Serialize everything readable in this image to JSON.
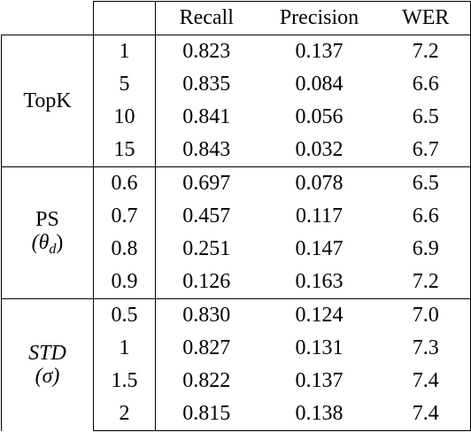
{
  "table": {
    "header": [
      "Recall",
      "Precision",
      "WER"
    ],
    "groups": [
      {
        "label": [
          [
            "TopK"
          ]
        ],
        "rows": [
          [
            "1",
            "0.823",
            "0.137",
            "7.2"
          ],
          [
            "5",
            "0.835",
            "0.084",
            "6.6"
          ],
          [
            "10",
            "0.841",
            "0.056",
            "6.5"
          ],
          [
            "15",
            "0.843",
            "0.032",
            "6.7"
          ]
        ]
      },
      {
        "label": [
          [
            "PS"
          ],
          [
            "(θ",
            "d",
            ")"
          ]
        ],
        "rows": [
          [
            "0.6",
            "0.697",
            "0.078",
            "6.5"
          ],
          [
            "0.7",
            "0.457",
            "0.117",
            "6.6"
          ],
          [
            "0.8",
            "0.251",
            "0.147",
            "6.9"
          ],
          [
            "0.9",
            "0.126",
            "0.163",
            "7.2"
          ]
        ]
      },
      {
        "label": [
          [
            "STD"
          ],
          [
            "(σ)"
          ]
        ],
        "rows": [
          [
            "0.5",
            "0.830",
            "0.124",
            "7.0"
          ],
          [
            "1",
            "0.827",
            "0.131",
            "7.3"
          ],
          [
            "1.5",
            "0.822",
            "0.137",
            "7.4"
          ],
          [
            "2",
            "0.815",
            "0.138",
            "7.4"
          ]
        ]
      }
    ]
  }
}
